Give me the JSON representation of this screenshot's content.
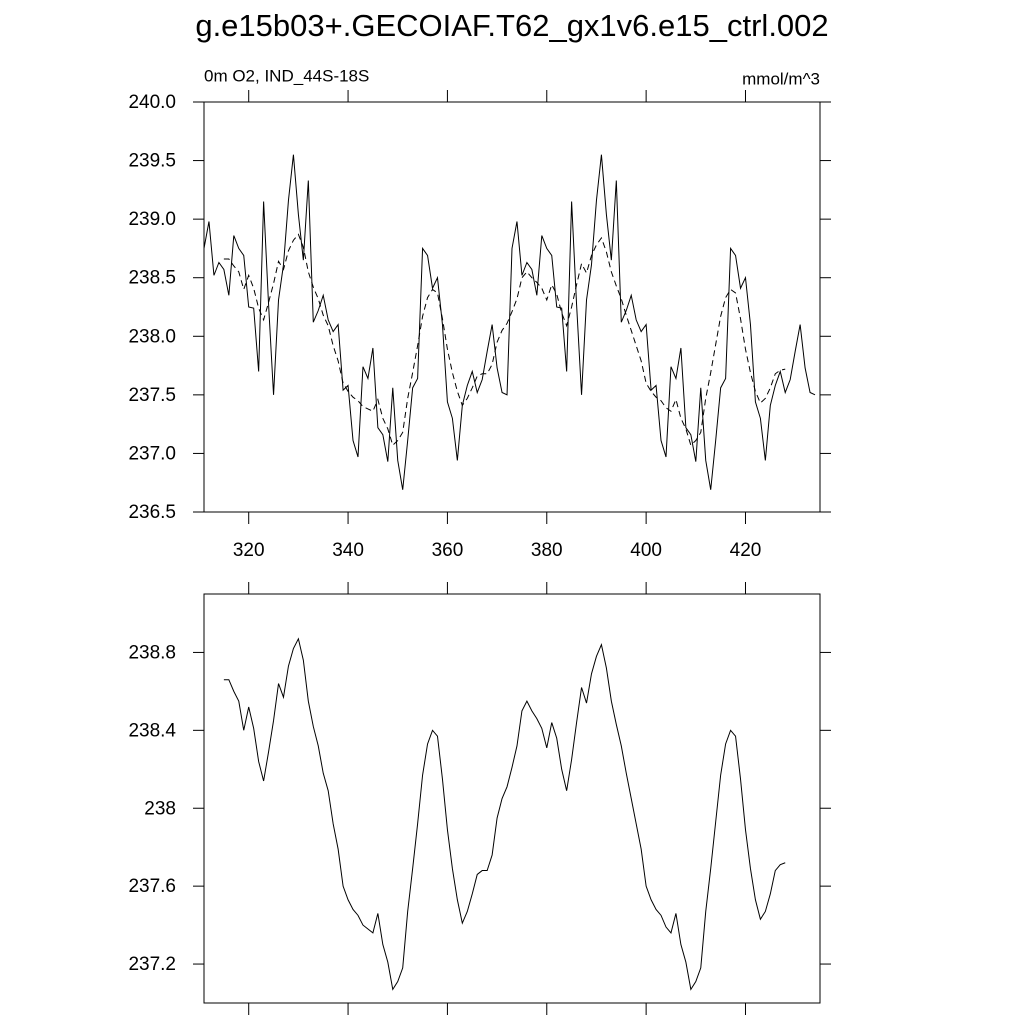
{
  "chart_data": [
    {
      "type": "line",
      "title": "g.e15b03+.GECOIAF.T62_gx1v6.e15_ctrl.002",
      "left_string": "0m O2, IND_44S-18S",
      "right_string": "mmol/m^3",
      "x": [
        311,
        312,
        313,
        314,
        315,
        316,
        317,
        318,
        319,
        320,
        321,
        322,
        323,
        324,
        325,
        326,
        327,
        328,
        329,
        330,
        331,
        332,
        333,
        334,
        335,
        336,
        337,
        338,
        339,
        340,
        341,
        342,
        343,
        344,
        345,
        346,
        347,
        348,
        349,
        350,
        351,
        352,
        353,
        354,
        355,
        356,
        357,
        358,
        359,
        360,
        361,
        362,
        363,
        364,
        365,
        366,
        367,
        368,
        369,
        370,
        371,
        372,
        373,
        374,
        375,
        376,
        377,
        378,
        379,
        380,
        381,
        382,
        383,
        384,
        385,
        386,
        387,
        388,
        389,
        390,
        391,
        392,
        393,
        394,
        395,
        396,
        397,
        398,
        399,
        400,
        401,
        402,
        403,
        404,
        405,
        406,
        407,
        408,
        409,
        410,
        411,
        412,
        413,
        414,
        415,
        416,
        417,
        418,
        419,
        420,
        421,
        422,
        423,
        424,
        425,
        426,
        427,
        428,
        429,
        430,
        431,
        432,
        433,
        434
      ],
      "series": [
        {
          "color": "#000000",
          "line_style": "solid",
          "values": [
            238.75,
            238.98,
            238.52,
            238.63,
            238.57,
            238.35,
            238.86,
            238.75,
            238.69,
            238.25,
            238.24,
            237.7,
            239.15,
            238.27,
            237.5,
            238.31,
            238.61,
            239.16,
            239.55,
            239.04,
            238.65,
            239.33,
            238.12,
            238.22,
            238.35,
            238.14,
            238.04,
            238.1,
            237.54,
            237.58,
            237.11,
            236.97,
            237.74,
            237.64,
            237.9,
            237.22,
            237.16,
            236.93,
            237.56,
            236.94,
            236.69,
            237.11,
            237.56,
            237.64,
            238.75,
            238.69,
            238.41,
            238.5,
            238.1,
            237.44,
            237.3,
            236.94,
            237.41,
            237.58,
            237.7,
            237.52,
            237.63,
            237.87,
            238.1,
            237.73,
            237.52,
            237.5,
            238.75,
            238.98,
            238.52,
            238.63,
            238.57,
            238.35,
            238.86,
            238.75,
            238.69,
            238.25,
            238.24,
            237.7,
            239.15,
            238.27,
            237.5,
            238.31,
            238.61,
            239.16,
            239.55,
            239.04,
            238.65,
            239.33,
            238.12,
            238.22,
            238.35,
            238.14,
            238.04,
            238.1,
            237.54,
            237.58,
            237.11,
            236.97,
            237.74,
            237.64,
            237.9,
            237.22,
            237.16,
            236.93,
            237.56,
            236.94,
            236.69,
            237.11,
            237.56,
            237.64,
            238.75,
            238.69,
            238.41,
            238.5,
            238.1,
            237.44,
            237.3,
            236.94,
            237.41,
            237.58,
            237.7,
            237.52,
            237.63,
            237.87,
            238.1,
            237.73,
            237.52,
            237.5
          ]
        },
        {
          "color": "#000000",
          "line_style": "dashed",
          "values": [
            null,
            null,
            null,
            null,
            238.66,
            238.66,
            238.6,
            238.55,
            238.4,
            238.52,
            238.41,
            238.24,
            238.14,
            238.29,
            238.45,
            238.64,
            238.57,
            238.73,
            238.82,
            238.87,
            238.76,
            238.55,
            238.42,
            238.32,
            238.18,
            238.09,
            237.92,
            237.79,
            237.6,
            237.53,
            237.48,
            237.45,
            237.4,
            237.38,
            237.36,
            237.46,
            237.3,
            237.21,
            237.07,
            237.11,
            237.18,
            237.47,
            237.69,
            237.92,
            238.17,
            238.33,
            238.4,
            238.37,
            238.15,
            237.89,
            237.69,
            237.53,
            237.41,
            237.47,
            237.56,
            237.66,
            237.68,
            237.68,
            237.76,
            237.95,
            238.05,
            238.11,
            238.21,
            238.32,
            238.5,
            238.55,
            238.5,
            238.46,
            238.41,
            238.31,
            238.44,
            238.36,
            238.2,
            238.09,
            238.25,
            238.44,
            238.62,
            238.54,
            238.69,
            238.78,
            238.84,
            238.72,
            238.55,
            238.43,
            238.32,
            238.18,
            238.05,
            237.92,
            237.79,
            237.6,
            237.53,
            237.48,
            237.45,
            237.39,
            237.36,
            237.46,
            237.3,
            237.21,
            237.07,
            237.11,
            237.18,
            237.47,
            237.69,
            237.93,
            238.17,
            238.33,
            238.4,
            238.37,
            238.15,
            237.89,
            237.69,
            237.53,
            237.43,
            237.47,
            237.56,
            237.68,
            237.71,
            237.72,
            null,
            null,
            null,
            null,
            null,
            null
          ]
        }
      ],
      "xlim": [
        311,
        435
      ],
      "xticks": [
        320,
        340,
        360,
        380,
        400,
        420
      ],
      "ylim": [
        236.5,
        240.0
      ],
      "yticks": [
        {
          "value": 236.5,
          "label": "236.5"
        },
        {
          "value": 237.0,
          "label": "237.0"
        },
        {
          "value": 237.5,
          "label": "237.5"
        },
        {
          "value": 238.0,
          "label": "238.0"
        },
        {
          "value": 238.5,
          "label": "238.5"
        },
        {
          "value": 239.0,
          "label": "239.0"
        },
        {
          "value": 239.5,
          "label": "239.5"
        },
        {
          "value": 240.0,
          "label": "240.0"
        }
      ]
    },
    {
      "type": "line",
      "x": [
        311,
        312,
        313,
        314,
        315,
        316,
        317,
        318,
        319,
        320,
        321,
        322,
        323,
        324,
        325,
        326,
        327,
        328,
        329,
        330,
        331,
        332,
        333,
        334,
        335,
        336,
        337,
        338,
        339,
        340,
        341,
        342,
        343,
        344,
        345,
        346,
        347,
        348,
        349,
        350,
        351,
        352,
        353,
        354,
        355,
        356,
        357,
        358,
        359,
        360,
        361,
        362,
        363,
        364,
        365,
        366,
        367,
        368,
        369,
        370,
        371,
        372,
        373,
        374,
        375,
        376,
        377,
        378,
        379,
        380,
        381,
        382,
        383,
        384,
        385,
        386,
        387,
        388,
        389,
        390,
        391,
        392,
        393,
        394,
        395,
        396,
        397,
        398,
        399,
        400,
        401,
        402,
        403,
        404,
        405,
        406,
        407,
        408,
        409,
        410,
        411,
        412,
        413,
        414,
        415,
        416,
        417,
        418,
        419,
        420,
        421,
        422,
        423,
        424,
        425,
        426,
        427,
        428,
        429,
        430,
        431,
        432,
        433,
        434
      ],
      "series": [
        {
          "color": "#000000",
          "line_style": "solid",
          "values": [
            null,
            null,
            null,
            null,
            238.66,
            238.66,
            238.6,
            238.55,
            238.4,
            238.52,
            238.41,
            238.24,
            238.14,
            238.29,
            238.45,
            238.64,
            238.57,
            238.73,
            238.82,
            238.87,
            238.76,
            238.55,
            238.42,
            238.32,
            238.18,
            238.09,
            237.92,
            237.79,
            237.6,
            237.53,
            237.48,
            237.45,
            237.4,
            237.38,
            237.36,
            237.46,
            237.3,
            237.21,
            237.07,
            237.11,
            237.18,
            237.47,
            237.69,
            237.92,
            238.17,
            238.33,
            238.4,
            238.37,
            238.15,
            237.89,
            237.69,
            237.53,
            237.41,
            237.47,
            237.56,
            237.66,
            237.68,
            237.68,
            237.76,
            237.95,
            238.05,
            238.11,
            238.21,
            238.32,
            238.5,
            238.55,
            238.5,
            238.46,
            238.41,
            238.31,
            238.44,
            238.36,
            238.2,
            238.09,
            238.25,
            238.44,
            238.62,
            238.54,
            238.69,
            238.78,
            238.84,
            238.72,
            238.55,
            238.43,
            238.32,
            238.18,
            238.05,
            237.92,
            237.79,
            237.6,
            237.53,
            237.48,
            237.45,
            237.39,
            237.36,
            237.46,
            237.3,
            237.21,
            237.07,
            237.11,
            237.18,
            237.47,
            237.69,
            237.93,
            238.17,
            238.33,
            238.4,
            238.37,
            238.15,
            237.89,
            237.69,
            237.53,
            237.43,
            237.47,
            237.56,
            237.68,
            237.71,
            237.72,
            null,
            null,
            null,
            null,
            null,
            null
          ]
        }
      ],
      "xlim": [
        311,
        435
      ],
      "xticks": [
        320,
        340,
        360,
        380,
        400,
        420
      ],
      "ylim": [
        237.0,
        239.1
      ],
      "yticks": [
        237.2,
        237.6,
        238.0,
        238.4,
        238.8
      ]
    }
  ]
}
